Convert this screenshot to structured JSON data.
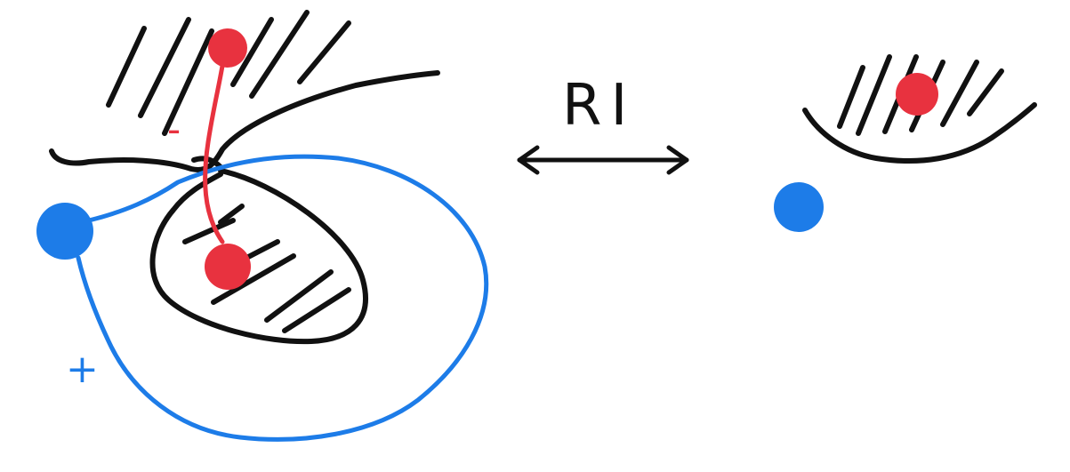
{
  "colors": {
    "ink": "#111111",
    "red": "#e8323f",
    "blue": "#1d7ce8",
    "background": "#ffffff"
  },
  "move_label": "RI",
  "left_figure": {
    "positive_sign": "+",
    "negative_sign": "-"
  }
}
